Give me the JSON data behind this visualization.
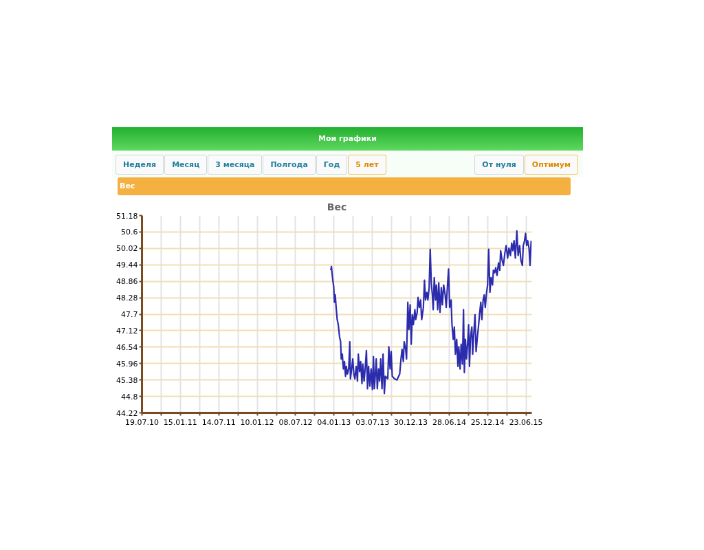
{
  "chart_data": {
    "type": "line",
    "title": "Вес",
    "annotations": [
      "Мои графики",
      "Неделя",
      "Месяц",
      "3 месяца",
      "Полгода",
      "Год",
      "5 лет",
      "От нуля",
      "Оптимум",
      "Вес"
    ],
    "x": [
      "2012-12-20",
      "2012-12-23",
      "2012-12-28",
      "2013-01-03",
      "2013-01-06",
      "2013-01-10",
      "2013-01-14",
      "2013-01-19",
      "2013-01-24",
      "2013-01-30",
      "2013-02-04",
      "2013-02-07",
      "2013-02-12",
      "2013-02-17",
      "2013-02-22",
      "2013-02-27",
      "2013-03-03",
      "2013-03-08",
      "2013-03-14",
      "2013-03-19",
      "2013-03-22",
      "2013-03-28",
      "2013-04-02",
      "2013-04-07",
      "2013-04-12",
      "2013-04-18",
      "2013-04-24",
      "2013-04-28",
      "2013-05-04",
      "2013-05-09",
      "2013-05-15",
      "2013-05-19",
      "2013-05-25",
      "2013-05-30",
      "2013-06-05",
      "2013-06-10",
      "2013-06-15",
      "2013-06-21",
      "2013-06-27",
      "2013-07-03",
      "2013-07-08",
      "2013-07-12",
      "2013-07-17",
      "2013-07-21",
      "2013-07-26",
      "2013-08-01",
      "2013-08-06",
      "2013-08-11",
      "2013-08-17",
      "2013-08-22",
      "2013-08-28",
      "2013-09-02",
      "2013-09-13",
      "2013-09-18",
      "2013-09-24",
      "2013-09-29",
      "2013-10-04",
      "2013-10-15",
      "2013-10-26",
      "2013-11-08",
      "2013-11-14",
      "2013-11-19",
      "2013-11-25",
      "2013-11-29",
      "2013-12-06",
      "2013-12-10",
      "2013-12-16",
      "2013-12-21",
      "2013-12-27",
      "2014-01-01",
      "2014-01-06",
      "2014-01-11",
      "2014-01-18",
      "2014-01-22",
      "2014-01-29",
      "2014-02-02",
      "2014-02-08",
      "2014-02-14",
      "2014-02-19",
      "2014-02-27",
      "2014-03-04",
      "2014-03-09",
      "2014-03-15",
      "2014-03-20",
      "2014-03-26",
      "2014-03-31",
      "2014-04-05",
      "2014-04-10",
      "2014-04-14",
      "2014-04-19",
      "2014-04-25",
      "2014-04-29",
      "2014-05-05",
      "2014-05-10",
      "2014-05-16",
      "2014-05-22",
      "2014-05-27",
      "2014-06-02",
      "2014-06-09",
      "2014-06-14",
      "2014-06-20",
      "2014-06-25",
      "2014-06-30",
      "2014-07-07",
      "2014-07-11",
      "2014-07-17",
      "2014-07-22",
      "2014-07-27",
      "2014-08-02",
      "2014-08-08",
      "2014-08-12",
      "2014-08-18",
      "2014-08-23",
      "2014-08-29",
      "2014-09-03",
      "2014-09-07",
      "2014-09-12",
      "2014-09-17",
      "2014-09-22",
      "2014-09-27",
      "2014-10-01",
      "2014-10-06",
      "2014-10-12",
      "2014-10-16",
      "2014-10-21",
      "2014-10-27",
      "2014-11-01",
      "2014-11-07",
      "2014-11-12",
      "2014-11-17",
      "2014-11-23",
      "2014-11-28",
      "2014-12-04",
      "2014-12-09",
      "2014-12-14",
      "2014-12-20",
      "2014-12-25",
      "2014-12-30",
      "2015-01-05",
      "2015-01-10",
      "2015-01-17",
      "2015-01-21",
      "2015-01-27",
      "2015-02-01",
      "2015-02-07",
      "2015-02-14",
      "2015-02-20",
      "2015-02-24",
      "2015-03-03",
      "2015-03-09",
      "2015-03-16",
      "2015-03-22",
      "2015-03-29",
      "2015-04-04",
      "2015-04-11",
      "2015-04-17",
      "2015-04-22",
      "2015-04-28",
      "2015-05-04",
      "2015-05-11",
      "2015-05-17",
      "2015-05-24",
      "2015-05-30",
      "2015-06-06",
      "2015-06-10",
      "2015-06-16",
      "2015-06-21",
      "2015-06-26",
      "2015-07-01",
      "2015-07-07",
      "2015-07-12",
      "2015-07-17"
    ],
    "series": [
      {
        "color": "#2b2bad",
        "values": [
          49.25,
          49.38,
          48.99,
          48.64,
          48.12,
          48.38,
          47.94,
          47.51,
          47.33,
          46.9,
          46.73,
          46.12,
          46.29,
          45.77,
          46.03,
          45.51,
          45.86,
          45.59,
          45.77,
          46.73,
          45.42,
          45.77,
          46.12,
          45.59,
          45.42,
          45.86,
          45.34,
          46.29,
          45.68,
          46.03,
          45.25,
          45.94,
          45.34,
          45.77,
          46.42,
          45.07,
          45.86,
          45.16,
          45.77,
          45.04,
          46.2,
          45.07,
          45.59,
          46.12,
          45.07,
          45.77,
          45.34,
          46.12,
          45.07,
          46.29,
          44.9,
          45.51,
          45.42,
          46.55,
          45.77,
          46.38,
          45.51,
          45.42,
          45.38,
          45.59,
          46.12,
          46.46,
          46.03,
          46.73,
          46.46,
          46.12,
          48.12,
          47.16,
          48.03,
          46.64,
          47.68,
          47.33,
          47.86,
          47.51,
          47.77,
          48.29,
          47.94,
          48.2,
          47.51,
          47.94,
          48.9,
          48.2,
          48.47,
          48.2,
          48.64,
          49.99,
          48.81,
          48.38,
          47.86,
          48.99,
          48.2,
          48.73,
          47.86,
          48.81,
          47.77,
          48.64,
          48.03,
          48.73,
          48.38,
          47.94,
          48.73,
          49.29,
          47.94,
          48.2,
          47.33,
          46.81,
          47.25,
          46.29,
          46.81,
          45.86,
          46.55,
          45.77,
          46.64,
          45.94,
          47.86,
          45.64,
          46.81,
          46.12,
          46.64,
          47.33,
          45.86,
          46.9,
          47.25,
          46.29,
          46.99,
          47.68,
          46.38,
          46.9,
          47.25,
          47.68,
          48.12,
          47.51,
          48.2,
          48.38,
          47.94,
          48.47,
          48.73,
          49.99,
          48.47,
          48.99,
          48.73,
          49.25,
          49.16,
          49.34,
          49.07,
          49.51,
          49.25,
          49.94,
          49.6,
          49.42,
          49.86,
          50.12,
          49.68,
          50.03,
          49.77,
          50.21,
          49.94,
          50.29,
          49.68,
          50.64,
          49.77,
          50.12,
          49.6,
          49.42,
          50.12,
          50.29,
          50.55,
          50.12,
          50.29,
          50.03,
          49.42,
          50.29
        ]
      }
    ],
    "xlim": [
      "2010-07-19",
      "2015-07-20"
    ],
    "xticks": [
      {
        "value": "2010-07-19",
        "label": "19.07.10"
      },
      {
        "value": "2010-10-17",
        "label": null
      },
      {
        "value": "2011-01-15",
        "label": "15.01.11"
      },
      {
        "value": "2011-04-15",
        "label": null
      },
      {
        "value": "2011-07-14",
        "label": "14.07.11"
      },
      {
        "value": "2011-10-12",
        "label": null
      },
      {
        "value": "2012-01-10",
        "label": "10.01.12"
      },
      {
        "value": "2012-04-09",
        "label": null
      },
      {
        "value": "2012-07-08",
        "label": "08.07.12"
      },
      {
        "value": "2012-10-06",
        "label": null
      },
      {
        "value": "2013-01-04",
        "label": "04.01.13"
      },
      {
        "value": "2013-04-04",
        "label": null
      },
      {
        "value": "2013-07-03",
        "label": "03.07.13"
      },
      {
        "value": "2013-10-01",
        "label": null
      },
      {
        "value": "2013-12-30",
        "label": "30.12.13"
      },
      {
        "value": "2014-03-30",
        "label": null
      },
      {
        "value": "2014-06-28",
        "label": "28.06.14"
      },
      {
        "value": "2014-09-26",
        "label": null
      },
      {
        "value": "2014-12-25",
        "label": "25.12.14"
      },
      {
        "value": "2015-03-25",
        "label": null
      },
      {
        "value": "2015-06-23",
        "label": "23.06.15"
      }
    ],
    "ylim": [
      44.22,
      51.18
    ],
    "yticks": [
      44.22,
      44.8,
      45.38,
      45.96,
      46.54,
      47.12,
      47.7,
      48.28,
      48.86,
      49.44,
      50.02,
      50.6,
      51.18
    ],
    "grid": true,
    "marker": "none",
    "line_style": "solid"
  }
}
